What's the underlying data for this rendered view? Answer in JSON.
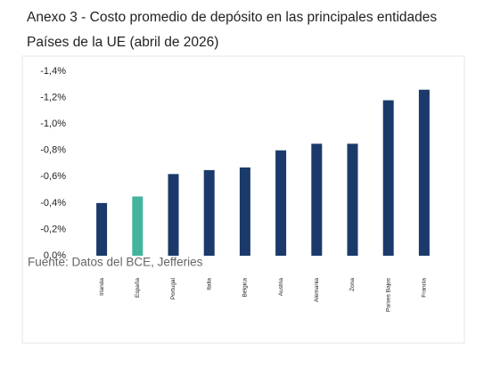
{
  "chart_data": {
    "type": "bar",
    "title": "Anexo 3 - Costo promedio de depósito en las principales entidades",
    "subtitle": "Países de la UE (abril de 2026)",
    "source": "Fuente: Datos del BCE, Jefferies",
    "categories": [
      "Irlanda",
      "España",
      "Portugal",
      "Italia",
      "Bélgica",
      "Austria",
      "Alemania",
      "Zona",
      "Países Bajos",
      "Francia"
    ],
    "values": [
      -0.4,
      -0.45,
      -0.62,
      -0.65,
      -0.67,
      -0.8,
      -0.85,
      -0.85,
      -1.18,
      -1.26
    ],
    "colors": [
      "#1b3a6b",
      "#44b59c",
      "#1b3a6b",
      "#1b3a6b",
      "#1b3a6b",
      "#1b3a6b",
      "#1b3a6b",
      "#1b3a6b",
      "#1b3a6b",
      "#1b3a6b"
    ],
    "ylim": [
      0,
      -1.4
    ],
    "yticks": [
      {
        "value": -1.4,
        "label": "-1,4%"
      },
      {
        "value": -1.2,
        "label": "-1,2%"
      },
      {
        "value": -1.0,
        "label": "-1,0%"
      },
      {
        "value": -0.8,
        "label": "-0,8%"
      },
      {
        "value": -0.6,
        "label": "-0,6%"
      },
      {
        "value": -0.4,
        "label": "-0,4%"
      },
      {
        "value": -0.2,
        "label": "-0,2%"
      },
      {
        "value": 0,
        "label": "0,0%"
      }
    ],
    "grid": false
  }
}
